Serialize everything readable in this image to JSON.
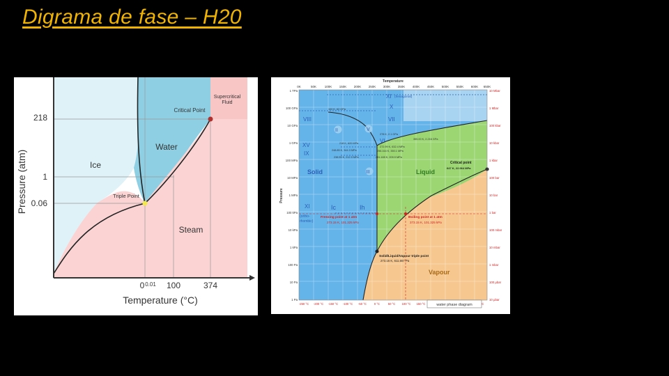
{
  "slide": {
    "title": "Digrama de fase – H20"
  },
  "simple_diagram": {
    "y_axis_label": "Pressure (atm)",
    "x_axis_label": "Temperature (°C)",
    "y_ticks": [
      "218",
      "1",
      "0.06"
    ],
    "x_ticks": [
      "0",
      "0.01",
      "100",
      "374"
    ],
    "regions": {
      "ice": "Ice",
      "water": "Water",
      "steam": "Steam",
      "supercritical": "Supercritical Fluid"
    },
    "points": {
      "critical": "Critical Point",
      "triple": "Triple Point"
    },
    "colors": {
      "ice": "#dff2f8",
      "water": "#8ecfe3",
      "steam": "#fbd3d3",
      "critical_point": "#b03030",
      "triple_point": "#f2e84a"
    }
  },
  "detailed_diagram": {
    "top_axis_title": "Temperature",
    "top_ticks": [
      "0K",
      "50K",
      "100K",
      "150K",
      "200K",
      "250K",
      "300K",
      "350K",
      "400K",
      "450K",
      "500K",
      "550K",
      "600K",
      "650K"
    ],
    "bottom_ticks": [
      "-250 °C",
      "-200 °C",
      "-150 °C",
      "-100 °C",
      "-50 °C",
      "0 °C",
      "50 °C",
      "100 °C",
      "150 °C",
      "200 °C",
      "250 °C",
      "300 °C",
      "350 °C"
    ],
    "left_axis_title": "Pressure",
    "left_ticks": [
      "1 TPa",
      "100 GPa",
      "10 GPa",
      "1 GPa",
      "100 MPa",
      "10 MPa",
      "1 MPa",
      "100 kPa",
      "10 kPa",
      "1 kPa",
      "100 Pa",
      "10 Pa",
      "1 Pa"
    ],
    "right_ticks": [
      "10 Mbar",
      "1 Mbar",
      "100 kbar",
      "10 kbar",
      "1 kbar",
      "100 bar",
      "10 bar",
      "1 bar",
      "100 mbar",
      "10 mbar",
      "1 mbar",
      "100 μbar",
      "10 μbar"
    ],
    "phase_labels": {
      "xi_hex": "XI",
      "xi_hex_note": "(hexagonal)",
      "x": "X",
      "viii": "VIII",
      "vii": "VII",
      "ii": "II",
      "v": "V",
      "vi": "VI",
      "xv": "XV",
      "ix": "IX",
      "iii": "III",
      "solid": "Solid",
      "liquid": "Liquid",
      "vapour": "Vapour",
      "xi_ortho": "XI",
      "xi_ortho_note1": "(ortho-",
      "xi_ortho_note2": "rhombic)",
      "ic": "Ic",
      "ih": "Ih"
    },
    "annotations": {
      "a1": "100 K, 62 GPa",
      "a2": "278 K, 2.1 GPa",
      "a3": "355.00 K, 2.216 GPa",
      "a4": "218 K, 620 MPa",
      "a5": "272.99 K, 632.4 MPa",
      "a6": "248.85 K, 344.3 MPa",
      "a7": "256.164 K, 350.1 MPa",
      "a8": "238.55 K, 212.9 MPa",
      "a9": "251.165 K, 209.9 MPa",
      "critical_title": "Critical point",
      "critical_value": "647 K, 22.064 MPa",
      "freezing_title": "Freezing point at 1 atm",
      "freezing_value": "273.15 K, 101.325 kPa",
      "boiling_title": "Boiling point at 1 atm",
      "boiling_value": "373.15 K, 101.325 kPa",
      "triple_title": "Solid/Liquid/Vapour triple point",
      "triple_value": "273.16 K, 611.657 Pa",
      "caption": "water phase diagram"
    },
    "colors": {
      "solid": "#64b4ea",
      "liquid": "#9bd673",
      "vapour": "#f6c890",
      "critical": "#d6e9f7",
      "label_blue": "#3b6fd0",
      "label_red": "#d32020"
    }
  }
}
